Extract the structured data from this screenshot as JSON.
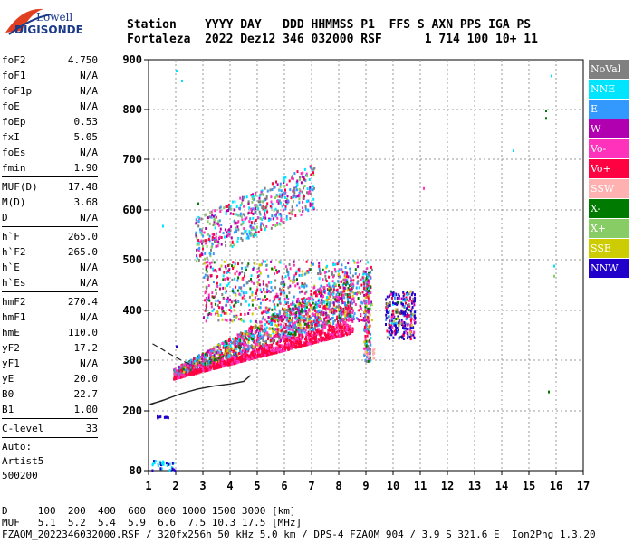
{
  "logo": {
    "line1": "Lowell",
    "line2": "DIGISONDE"
  },
  "header": {
    "labels": "Station    YYYY DAY   DDD HHMMSS P1  FFS S AXN PPS IGA PS",
    "values": "Fortaleza  2022 Dez12 346 032000 RSF      1 714 100 10+ 11"
  },
  "params": {
    "group1": [
      {
        "name": "foF2",
        "value": "4.750"
      },
      {
        "name": "foF1",
        "value": "N/A"
      },
      {
        "name": "foF1p",
        "value": "N/A"
      },
      {
        "name": "foE",
        "value": "N/A"
      },
      {
        "name": "foEp",
        "value": "0.53"
      },
      {
        "name": "fxI",
        "value": "5.05"
      },
      {
        "name": "foEs",
        "value": "N/A"
      },
      {
        "name": "fmin",
        "value": "1.90"
      }
    ],
    "group2": [
      {
        "name": "MUF(D)",
        "value": "17.48"
      },
      {
        "name": "M(D)",
        "value": "3.68"
      },
      {
        "name": "D",
        "value": "N/A"
      }
    ],
    "group3": [
      {
        "name": "h`F",
        "value": "265.0"
      },
      {
        "name": "h`F2",
        "value": "265.0"
      },
      {
        "name": "h`E",
        "value": "N/A"
      },
      {
        "name": "h`Es",
        "value": "N/A"
      }
    ],
    "group4": [
      {
        "name": "hmF2",
        "value": "270.4"
      },
      {
        "name": "hmF1",
        "value": "N/A"
      },
      {
        "name": "hmE",
        "value": "110.0"
      },
      {
        "name": "yF2",
        "value": "17.2"
      },
      {
        "name": "yF1",
        "value": "N/A"
      },
      {
        "name": "yE",
        "value": "20.0"
      },
      {
        "name": "B0",
        "value": "22.7"
      },
      {
        "name": "B1",
        "value": "1.00"
      }
    ],
    "group5": [
      {
        "name": "C-level",
        "value": "33"
      }
    ],
    "auto": [
      "Auto:",
      "Artist5",
      "500200"
    ]
  },
  "legend": [
    {
      "label": "NoVal",
      "color": "#808080"
    },
    {
      "label": "NNE",
      "color": "#00e5ff"
    },
    {
      "label": "E",
      "color": "#3399ff"
    },
    {
      "label": "W",
      "color": "#b000b0"
    },
    {
      "label": "Vo-",
      "color": "#ff33bb"
    },
    {
      "label": "Vo+",
      "color": "#ff0040"
    },
    {
      "label": "SSW",
      "color": "#ffb0b0"
    },
    {
      "label": "X-",
      "color": "#007a00"
    },
    {
      "label": "X+",
      "color": "#88cc66"
    },
    {
      "label": "SSE",
      "color": "#cccc00"
    },
    {
      "label": "NNW",
      "color": "#2200cc"
    }
  ],
  "chart_data": {
    "type": "scatter",
    "title": "",
    "xlabel": "",
    "ylabel": "",
    "xlim": [
      1,
      17
    ],
    "ylim": [
      80,
      900
    ],
    "x_ticks": [
      1,
      2,
      3,
      4,
      5,
      6,
      7,
      8,
      9,
      10,
      11,
      12,
      13,
      14,
      15,
      16,
      17
    ],
    "y_ticks": [
      80,
      200,
      300,
      400,
      500,
      600,
      700,
      800,
      900
    ],
    "grid": true,
    "clusters": [
      {
        "description_series": "F-trace",
        "x_range": [
          1.8,
          10.2
        ],
        "y_range": [
          255,
          500
        ]
      },
      {
        "description_series": "multi-hop",
        "x_range": [
          2.5,
          7.2
        ],
        "y_range": [
          520,
          720
        ]
      },
      {
        "description_series": "high-freq",
        "x_range": [
          9.6,
          10.8
        ],
        "y_range": [
          345,
          440
        ]
      }
    ],
    "profile_line": {
      "x": [
        1.05,
        1.5,
        1.8,
        2.2,
        2.8,
        3.4,
        4.0,
        4.5,
        4.75
      ],
      "y": [
        213,
        220,
        226,
        234,
        243,
        249,
        253,
        258,
        270
      ]
    },
    "upper_line": {
      "x": [
        1.15,
        1.5,
        1.8,
        2.2,
        2.6
      ],
      "y": [
        333,
        322,
        312,
        300,
        290
      ]
    }
  },
  "footer": {
    "line1": "D     100  200  400  600  800 1000 1500 3000 [km]",
    "line2": "MUF   5.1  5.2  5.4  5.9  6.6  7.5 10.3 17.5 [MHz]",
    "line3": "FZAOM_2022346032000.RSF / 320fx256h 50 kHz 5.0 km / DPS-4 FZAOM 904 / 3.9 S 321.6 E  Ion2Png 1.3.20"
  }
}
